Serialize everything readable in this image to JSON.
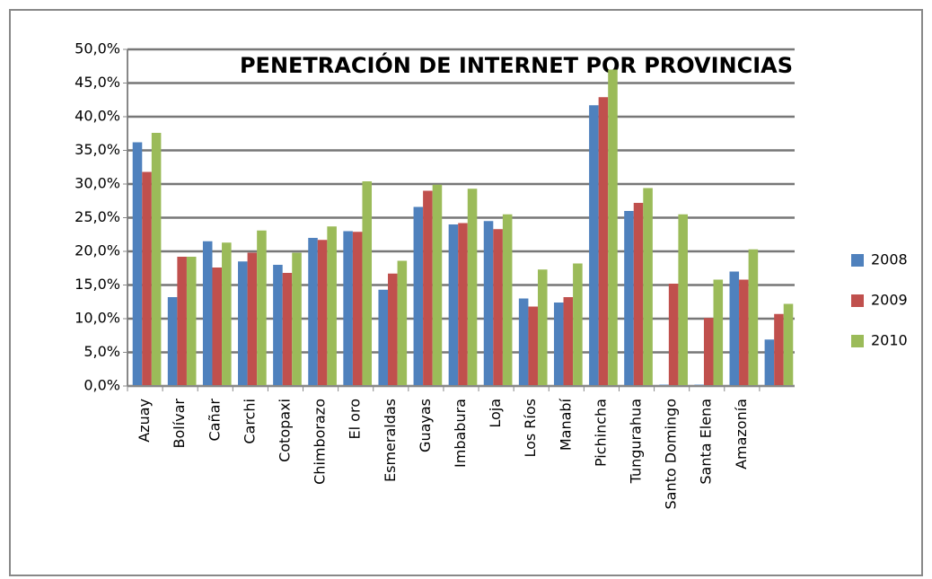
{
  "chart_data": {
    "type": "bar",
    "title": "PENETRACIÓN DE INTERNET POR PROVINCIAS",
    "categories": [
      "Azuay",
      "Bolívar",
      "Cañar",
      "Carchi",
      "Cotopaxi",
      "Chimborazo",
      "El oro",
      "Esmeraldas",
      "Guayas",
      "Imbabura",
      "Loja",
      "Los Ríos",
      "Manabí",
      "Pichincha",
      "Tungurahua",
      "Santo Domingo",
      "Santa Elena",
      "Amazonía",
      null
    ],
    "series": [
      {
        "name": "2008",
        "color": "#4f81bd",
        "values": [
          36.2,
          13.2,
          21.5,
          18.5,
          18.0,
          22.0,
          23.0,
          14.3,
          26.6,
          24.0,
          24.5,
          13.0,
          12.4,
          41.7,
          26.0,
          0.2,
          0.2,
          17.0,
          6.9
        ]
      },
      {
        "name": "2009",
        "color": "#c0504d",
        "values": [
          31.8,
          19.2,
          17.6,
          19.8,
          16.8,
          21.7,
          22.9,
          16.7,
          29.0,
          24.2,
          23.3,
          11.8,
          13.2,
          42.9,
          27.2,
          15.2,
          10.1,
          15.8,
          10.7
        ]
      },
      {
        "name": "2010",
        "color": "#9bbb59",
        "values": [
          37.6,
          19.2,
          21.3,
          23.1,
          19.8,
          23.7,
          30.4,
          18.6,
          29.9,
          29.3,
          25.5,
          17.3,
          18.2,
          47.0,
          29.4,
          25.5,
          15.8,
          20.3,
          12.2
        ]
      }
    ],
    "ylim": [
      0,
      50
    ],
    "yticks": [
      {
        "value": 0,
        "label": "0,0%"
      },
      {
        "value": 5,
        "label": "5,0%"
      },
      {
        "value": 10,
        "label": "10,0%"
      },
      {
        "value": 15,
        "label": "15,0%"
      },
      {
        "value": 20,
        "label": "20,0%"
      },
      {
        "value": 25,
        "label": "25,0%"
      },
      {
        "value": 30,
        "label": "30,0%"
      },
      {
        "value": 35,
        "label": "35,0%"
      },
      {
        "value": 40,
        "label": "40,0%"
      },
      {
        "value": 45,
        "label": "45,0%"
      },
      {
        "value": 50,
        "label": "50,0%"
      }
    ],
    "grid": true,
    "legend": "right"
  }
}
